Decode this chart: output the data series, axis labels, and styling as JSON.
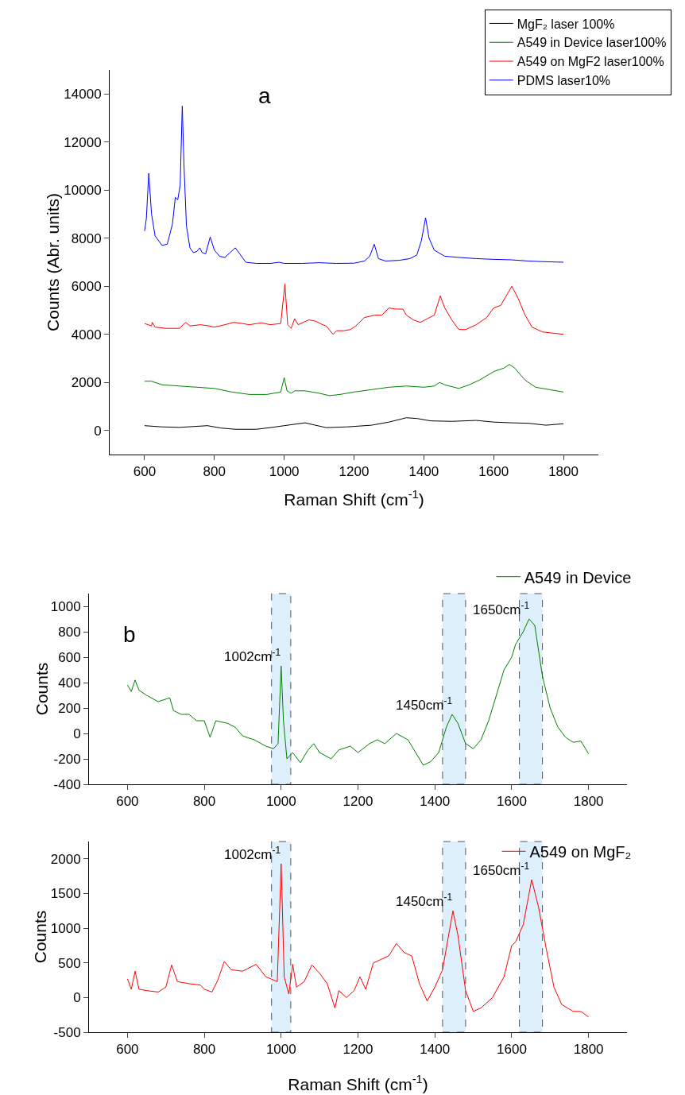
{
  "chart_data": [
    {
      "type": "line",
      "xlabel": "Raman Shift (cm$^{-1}$)",
      "ylabel": "Counts (Abr. units)",
      "annotations": [
        "a"
      ],
      "legend": "top right",
      "grid": false,
      "xlim": [
        500,
        1900
      ],
      "xticks": [
        600,
        800,
        1000,
        1200,
        1400,
        1600,
        1800
      ],
      "ylim": [
        -1000,
        15000
      ],
      "yticks": [
        0,
        2000,
        4000,
        6000,
        8000,
        10000,
        12000,
        14000
      ],
      "series": [
        {
          "name": "MgF₂ laser 100%",
          "color": "#000000",
          "x": [
            600,
            650,
            700,
            780,
            820,
            860,
            920,
            960,
            1000,
            1060,
            1080,
            1120,
            1180,
            1250,
            1300,
            1350,
            1380,
            1420,
            1480,
            1550,
            1600,
            1650,
            1700,
            1750,
            1800
          ],
          "values": [
            200,
            150,
            130,
            200,
            100,
            50,
            50,
            120,
            200,
            320,
            250,
            120,
            150,
            220,
            350,
            530,
            500,
            400,
            380,
            420,
            350,
            320,
            300,
            220,
            280
          ]
        },
        {
          "name": "A549 in Device laser100%",
          "color": "#008000",
          "x": [
            600,
            620,
            650,
            700,
            750,
            800,
            850,
            900,
            950,
            990,
            1000,
            1008,
            1020,
            1030,
            1060,
            1100,
            1130,
            1160,
            1200,
            1250,
            1300,
            1350,
            1400,
            1430,
            1445,
            1460,
            1500,
            1530,
            1560,
            1600,
            1630,
            1645,
            1660,
            1690,
            1720,
            1760,
            1800
          ],
          "values": [
            2050,
            2050,
            1900,
            1850,
            1800,
            1750,
            1600,
            1500,
            1500,
            1600,
            2200,
            1650,
            1550,
            1650,
            1650,
            1550,
            1450,
            1500,
            1600,
            1700,
            1800,
            1850,
            1800,
            1850,
            2000,
            1900,
            1750,
            1900,
            2100,
            2450,
            2600,
            2750,
            2600,
            2100,
            1800,
            1700,
            1600
          ]
        },
        {
          "name": "A549 on MgF2 laser100%",
          "color": "#ff0000",
          "x": [
            600,
            620,
            622,
            630,
            660,
            700,
            718,
            730,
            760,
            785,
            800,
            830,
            855,
            880,
            900,
            935,
            960,
            990,
            1002,
            1010,
            1020,
            1030,
            1040,
            1070,
            1090,
            1110,
            1120,
            1140,
            1150,
            1170,
            1190,
            1205,
            1230,
            1260,
            1280,
            1300,
            1320,
            1340,
            1350,
            1370,
            1390,
            1410,
            1430,
            1447,
            1460,
            1480,
            1500,
            1520,
            1550,
            1580,
            1600,
            1620,
            1640,
            1652,
            1670,
            1690,
            1710,
            1740,
            1770,
            1800
          ],
          "values": [
            4450,
            4350,
            4500,
            4300,
            4250,
            4250,
            4500,
            4350,
            4400,
            4350,
            4300,
            4400,
            4500,
            4450,
            4400,
            4480,
            4400,
            4450,
            6100,
            4400,
            4250,
            4650,
            4400,
            4600,
            4550,
            4400,
            4350,
            4000,
            4150,
            4150,
            4200,
            4350,
            4700,
            4800,
            4800,
            5100,
            5050,
            5050,
            4800,
            4600,
            4500,
            4650,
            4800,
            5600,
            5100,
            4600,
            4200,
            4200,
            4400,
            4700,
            5100,
            5200,
            5700,
            6000,
            5500,
            4800,
            4300,
            4100,
            4050,
            4000
          ]
        },
        {
          "name": "PDMS laser10%",
          "color": "#0000ff",
          "x": [
            600,
            605,
            612,
            620,
            630,
            650,
            665,
            680,
            688,
            695,
            702,
            708,
            713,
            720,
            730,
            740,
            750,
            758,
            765,
            775,
            788,
            800,
            815,
            830,
            845,
            860,
            875,
            890,
            920,
            960,
            985,
            1000,
            1050,
            1100,
            1150,
            1200,
            1230,
            1245,
            1258,
            1270,
            1290,
            1330,
            1360,
            1380,
            1393,
            1405,
            1415,
            1430,
            1460,
            1500,
            1550,
            1600,
            1650,
            1700,
            1750,
            1800
          ],
          "values": [
            8300,
            8800,
            10700,
            9000,
            8100,
            7700,
            7750,
            8600,
            9700,
            9600,
            10200,
            13500,
            11000,
            8500,
            7600,
            7400,
            7450,
            7600,
            7400,
            7350,
            8050,
            7500,
            7250,
            7200,
            7400,
            7600,
            7300,
            7000,
            6950,
            6950,
            7000,
            6950,
            6950,
            6980,
            6950,
            6960,
            7050,
            7250,
            7750,
            7150,
            7050,
            7080,
            7150,
            7300,
            7900,
            8850,
            8000,
            7500,
            7250,
            7200,
            7150,
            7120,
            7100,
            7050,
            7020,
            7000
          ]
        }
      ]
    },
    {
      "type": "line",
      "ylabel": "Counts",
      "annotations": [
        "b",
        {
          "text": "1002cm$^{-1}$",
          "x": 1002,
          "y": 530
        },
        {
          "text": "1450cm$^{-1}$",
          "x": 1450,
          "y": 150
        },
        {
          "text": "1650cm$^{-1}$",
          "x": 1650,
          "y": 900
        }
      ],
      "legend": "top right",
      "grid": false,
      "xlim": [
        500,
        1900
      ],
      "xticks": [
        600,
        800,
        1000,
        1200,
        1400,
        1600,
        1800
      ],
      "ylim": [
        -400,
        1100
      ],
      "yticks": [
        -400,
        -200,
        0,
        200,
        400,
        600,
        800,
        1000
      ],
      "bands": [
        {
          "axis": "x",
          "from": 975,
          "to": 1025,
          "color": "#dcefFb"
        },
        {
          "axis": "x",
          "from": 1420,
          "to": 1480,
          "color": "#dcefFb"
        },
        {
          "axis": "x",
          "from": 1620,
          "to": 1680,
          "color": "#dcefFb"
        }
      ],
      "series": [
        {
          "name": "A549 in Device",
          "color": "#008000",
          "x": [
            600,
            610,
            620,
            630,
            650,
            680,
            710,
            720,
            740,
            760,
            780,
            800,
            815,
            830,
            860,
            880,
            900,
            930,
            960,
            980,
            992,
            1000,
            1006,
            1015,
            1030,
            1050,
            1070,
            1085,
            1100,
            1130,
            1150,
            1180,
            1200,
            1230,
            1250,
            1270,
            1300,
            1330,
            1350,
            1370,
            1390,
            1410,
            1430,
            1445,
            1460,
            1480,
            1500,
            1520,
            1540,
            1560,
            1580,
            1600,
            1610,
            1630,
            1645,
            1660,
            1680,
            1700,
            1720,
            1740,
            1760,
            1780,
            1800
          ],
          "values": [
            380,
            330,
            420,
            340,
            300,
            250,
            280,
            180,
            150,
            150,
            100,
            100,
            -30,
            100,
            80,
            50,
            -20,
            -50,
            -100,
            -120,
            -80,
            530,
            100,
            -200,
            -150,
            -230,
            -130,
            -80,
            -150,
            -200,
            -130,
            -100,
            -150,
            -80,
            -50,
            -80,
            0,
            -50,
            -150,
            -250,
            -220,
            -150,
            50,
            150,
            80,
            -80,
            -120,
            -50,
            100,
            300,
            500,
            600,
            700,
            800,
            900,
            850,
            450,
            200,
            50,
            -30,
            -70,
            -60,
            -160
          ]
        }
      ]
    },
    {
      "type": "line",
      "xlabel": "Raman Shift (cm$^{-1}$)",
      "ylabel": "Counts",
      "annotations": [
        {
          "text": "1002cm$^{-1}$",
          "x": 1002,
          "y": 1930
        },
        {
          "text": "1450cm$^{-1}$",
          "x": 1450,
          "y": 1250
        },
        {
          "text": "1650cm$^{-1}$",
          "x": 1650,
          "y": 1700
        }
      ],
      "legend": "top right",
      "grid": false,
      "xlim": [
        500,
        1900
      ],
      "xticks": [
        600,
        800,
        1000,
        1200,
        1400,
        1600,
        1800
      ],
      "ylim": [
        -500,
        2250
      ],
      "yticks": [
        -500,
        0,
        500,
        1000,
        1500,
        2000
      ],
      "bands": [
        {
          "axis": "x",
          "from": 975,
          "to": 1025,
          "color": "#dcefFb"
        },
        {
          "axis": "x",
          "from": 1420,
          "to": 1480,
          "color": "#dcefFb"
        },
        {
          "axis": "x",
          "from": 1620,
          "to": 1680,
          "color": "#dcefFb"
        }
      ],
      "series": [
        {
          "name": "A549 on MgF₂",
          "color": "#ff0000",
          "x": [
            600,
            610,
            620,
            630,
            650,
            680,
            700,
            715,
            730,
            760,
            790,
            800,
            820,
            835,
            852,
            870,
            900,
            935,
            960,
            990,
            1000,
            1008,
            1020,
            1030,
            1040,
            1060,
            1080,
            1100,
            1120,
            1140,
            1150,
            1170,
            1190,
            1205,
            1220,
            1240,
            1260,
            1280,
            1300,
            1320,
            1340,
            1360,
            1380,
            1400,
            1420,
            1447,
            1460,
            1480,
            1500,
            1520,
            1550,
            1580,
            1600,
            1610,
            1630,
            1652,
            1670,
            1690,
            1710,
            1730,
            1760,
            1780,
            1800
          ],
          "values": [
            270,
            120,
            380,
            120,
            100,
            80,
            150,
            470,
            230,
            200,
            180,
            120,
            80,
            250,
            520,
            400,
            380,
            480,
            300,
            230,
            1930,
            300,
            50,
            480,
            150,
            230,
            470,
            350,
            200,
            -150,
            100,
            0,
            100,
            300,
            120,
            500,
            550,
            600,
            780,
            650,
            600,
            200,
            -50,
            150,
            400,
            1250,
            900,
            100,
            -200,
            -150,
            0,
            300,
            750,
            800,
            1050,
            1700,
            1300,
            700,
            150,
            -100,
            -200,
            -200,
            -280
          ]
        }
      ]
    }
  ]
}
